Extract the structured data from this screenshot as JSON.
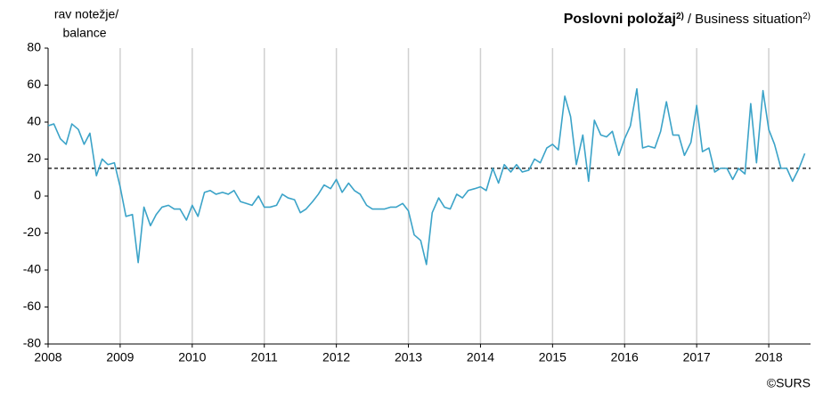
{
  "chart_data": {
    "type": "line",
    "title": "Poslovni položaj",
    "title_note": "2)",
    "subtitle": "/ Business situation",
    "subtitle_note": "2)",
    "y_label": [
      "rav notežje/",
      "balance"
    ],
    "credit": "©SURS",
    "x": [
      2008.0,
      2008.08,
      2008.17,
      2008.25,
      2008.33,
      2008.42,
      2008.5,
      2008.58,
      2008.67,
      2008.75,
      2008.83,
      2008.92,
      2009.0,
      2009.08,
      2009.17,
      2009.25,
      2009.33,
      2009.42,
      2009.5,
      2009.58,
      2009.67,
      2009.75,
      2009.83,
      2009.92,
      2010.0,
      2010.08,
      2010.17,
      2010.25,
      2010.33,
      2010.42,
      2010.5,
      2010.58,
      2010.67,
      2010.75,
      2010.83,
      2010.92,
      2011.0,
      2011.08,
      2011.17,
      2011.25,
      2011.33,
      2011.42,
      2011.5,
      2011.58,
      2011.67,
      2011.75,
      2011.83,
      2011.92,
      2012.0,
      2012.08,
      2012.17,
      2012.25,
      2012.33,
      2012.42,
      2012.5,
      2012.58,
      2012.67,
      2012.75,
      2012.83,
      2012.92,
      2013.0,
      2013.08,
      2013.17,
      2013.25,
      2013.33,
      2013.42,
      2013.5,
      2013.58,
      2013.67,
      2013.75,
      2013.83,
      2013.92,
      2014.0,
      2014.08,
      2014.17,
      2014.25,
      2014.33,
      2014.42,
      2014.5,
      2014.58,
      2014.67,
      2014.75,
      2014.83,
      2014.92,
      2015.0,
      2015.08,
      2015.17,
      2015.25,
      2015.33,
      2015.42,
      2015.5,
      2015.58,
      2015.67,
      2015.75,
      2015.83,
      2015.92,
      2016.0,
      2016.08,
      2016.17,
      2016.25,
      2016.33,
      2016.42,
      2016.5,
      2016.58,
      2016.67,
      2016.75,
      2016.83,
      2016.92,
      2017.0,
      2017.08,
      2017.17,
      2017.25,
      2017.33,
      2017.42,
      2017.5,
      2017.58,
      2017.67,
      2017.75,
      2017.83,
      2017.92,
      2018.0,
      2018.08,
      2018.17,
      2018.25,
      2018.33,
      2018.42,
      2018.5
    ],
    "series": [
      {
        "name": "Poslovni položaj",
        "color": "#3ba3c8",
        "values": [
          38,
          39,
          31,
          28,
          39,
          36,
          28,
          34,
          11,
          20,
          17,
          18,
          5,
          -11,
          -10,
          -36,
          -6,
          -16,
          -10,
          -6,
          -5,
          -7,
          -7,
          -13,
          -5,
          -11,
          2,
          3,
          1,
          2,
          1,
          3,
          -3,
          -4,
          -5,
          0,
          -6,
          -6,
          -5,
          1,
          -1,
          -2,
          -9,
          -7,
          -3,
          1,
          6,
          4,
          9,
          2,
          7,
          3,
          1,
          -5,
          -7,
          -7,
          -7,
          -6,
          -6,
          -4,
          -8,
          -21,
          -24,
          -37,
          -9,
          -1,
          -6,
          -7,
          1,
          -1,
          3,
          4,
          5,
          3,
          15,
          7,
          17,
          13,
          17,
          13,
          14,
          20,
          18,
          26,
          28,
          25,
          54,
          43,
          17,
          33,
          8,
          41,
          33,
          32,
          35,
          22,
          31,
          38,
          58,
          26,
          27,
          26,
          35,
          51,
          33,
          33,
          22,
          29,
          49,
          24,
          26,
          13,
          15,
          15,
          9,
          15,
          12,
          50,
          18,
          57,
          36,
          28,
          15,
          15,
          8,
          15,
          23
        ]
      }
    ],
    "reference_line": 15,
    "xlim": [
      2008,
      2018.58
    ],
    "xticks": [
      2008,
      2009,
      2010,
      2011,
      2012,
      2013,
      2014,
      2015,
      2016,
      2017,
      2018
    ],
    "ylim": [
      -80,
      80
    ],
    "yticks": [
      -80,
      -60,
      -40,
      -20,
      0,
      20,
      40,
      60,
      80
    ],
    "grid": "x"
  }
}
